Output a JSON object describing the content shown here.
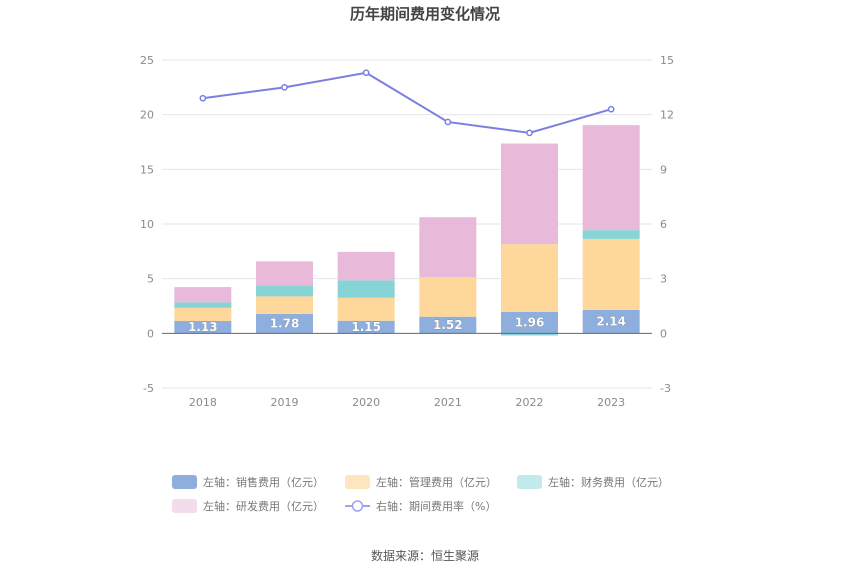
{
  "chart_data": {
    "type": "bar",
    "title": "历年期间费用变化情况",
    "categories": [
      "2018",
      "2019",
      "2020",
      "2021",
      "2022",
      "2023"
    ],
    "series": [
      {
        "name": "左轴：销售费用（亿元）",
        "axis": "left",
        "color": "#8eaedd",
        "values": [
          1.13,
          1.78,
          1.15,
          1.52,
          1.96,
          2.14
        ],
        "labels": [
          "1.13",
          "1.78",
          "1.15",
          "1.52",
          "1.96",
          "2.14"
        ]
      },
      {
        "name": "左轴：管理费用（亿元）",
        "axis": "left",
        "color": "#fdd89a",
        "values": [
          1.2,
          1.6,
          2.1,
          3.6,
          6.2,
          6.5
        ]
      },
      {
        "name": "左轴：财务费用（亿元）",
        "axis": "left",
        "color": "#86d4d6",
        "values": [
          0.5,
          1.0,
          1.6,
          0.0,
          -0.2,
          0.8
        ]
      },
      {
        "name": "左轴：研发费用（亿元）",
        "axis": "left",
        "color": "#e8b9d9",
        "values": [
          1.4,
          2.2,
          2.6,
          5.5,
          9.2,
          9.6
        ]
      },
      {
        "name": "右轴：期间费用率（%）",
        "axis": "right",
        "type": "line",
        "color": "#7b7fe0",
        "values": [
          12.9,
          13.5,
          14.3,
          11.6,
          11.0,
          12.3
        ]
      }
    ],
    "y_left": {
      "min": -5,
      "max": 25,
      "ticks": [
        "25",
        "20",
        "15",
        "10",
        "5",
        "0",
        "-5"
      ]
    },
    "y_right": {
      "min": -3,
      "max": 15,
      "ticks": [
        "15",
        "12",
        "9",
        "6",
        "3",
        "0",
        "-3"
      ]
    },
    "legend": [
      {
        "label": "左轴：销售费用（亿元）",
        "color": "#8eaedd",
        "kind": "bar"
      },
      {
        "label": "左轴：管理费用（亿元）",
        "color": "#fde5bf",
        "kind": "bar"
      },
      {
        "label": "左轴：财务费用（亿元）",
        "color": "#c2eaeb",
        "kind": "bar"
      },
      {
        "label": "左轴：研发费用（亿元）",
        "color": "#f3dcec",
        "kind": "bar"
      },
      {
        "label": "右轴：期间费用率（%）",
        "color": "#9fa2ec",
        "kind": "line"
      }
    ],
    "source": "数据来源：恒生聚源",
    "legend_position": "bottom"
  }
}
